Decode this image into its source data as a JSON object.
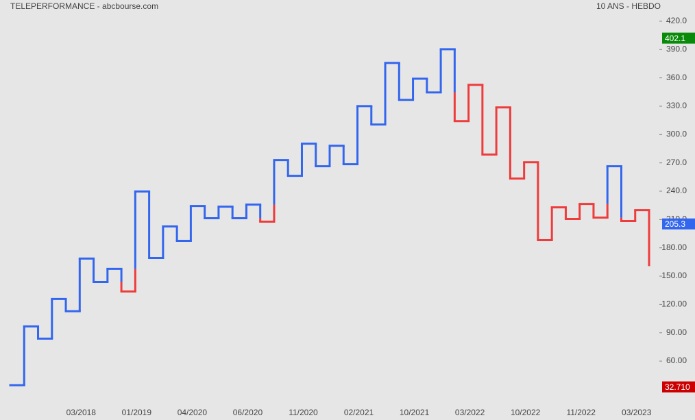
{
  "chart_data": {
    "type": "kagi",
    "title": "TELEPERFORMANCE - abcbourse.com",
    "subtitle": "10 ANS - HEBDO",
    "values": [
      34.5,
      96.8,
      83.8,
      125.8,
      112.8,
      168.6,
      143.9,
      157.7,
      133.8,
      239.6,
      169.3,
      202.6,
      187.4,
      224.3,
      211.3,
      223.6,
      211.3,
      225.8,
      207.7,
      272.9,
      256.2,
      290.3,
      266.4,
      288.1,
      268.6,
      330.1,
      310.6,
      375.8,
      336.7,
      359.1,
      344.6,
      390.3,
      314.2,
      352.6,
      278.7,
      328.7,
      253.3,
      270.7,
      188.1,
      222.9,
      210.6,
      226.5,
      212,
      266.4,
      208.4,
      220,
      160.6
    ],
    "colors": [
      "#3366ee",
      "#3366ee",
      "#3366ee",
      "#3366ee",
      "#3366ee",
      "#3366ee",
      "#3366ee",
      "#3366ee",
      "#ee3b3b",
      "#3366ee",
      "#3366ee",
      "#3366ee",
      "#3366ee",
      "#3366ee",
      "#3366ee",
      "#3366ee",
      "#3366ee",
      "#3366ee",
      "#ee3b3b",
      "#3366ee",
      "#3366ee",
      "#3366ee",
      "#3366ee",
      "#3366ee",
      "#3366ee",
      "#3366ee",
      "#3366ee",
      "#3366ee",
      "#3366ee",
      "#3366ee",
      "#3366ee",
      "#3366ee",
      "#ee3b3b",
      "#ee3b3b",
      "#ee3b3b",
      "#ee3b3b",
      "#ee3b3b",
      "#ee3b3b",
      "#ee3b3b",
      "#ee3b3b",
      "#ee3b3b",
      "#ee3b3b",
      "#ee3b3b",
      "#3366ee",
      "#ee3b3b",
      "#ee3b3b",
      "#ee3b3b"
    ],
    "x_labels": [
      "03/2018",
      "01/2019",
      "04/2020",
      "06/2020",
      "11/2020",
      "02/2021",
      "10/2021",
      "03/2022",
      "10/2022",
      "11/2022",
      "03/2023"
    ],
    "ylim": [
      30,
      440
    ],
    "yticks": [
      {
        "value": 420,
        "label": "420.0"
      },
      {
        "value": 390,
        "label": "390.0"
      },
      {
        "value": 360,
        "label": "360.0"
      },
      {
        "value": 330,
        "label": "330.0"
      },
      {
        "value": 300,
        "label": "300.0"
      },
      {
        "value": 270,
        "label": "270.0"
      },
      {
        "value": 240,
        "label": "240.0"
      },
      {
        "value": 210,
        "label": "210.0"
      },
      {
        "value": 180,
        "label": "180.00"
      },
      {
        "value": 150,
        "label": "150.00"
      },
      {
        "value": 120,
        "label": "120.00"
      },
      {
        "value": 90,
        "label": "90.00"
      },
      {
        "value": 60,
        "label": "60.00"
      }
    ],
    "price_labels": [
      {
        "value": 402.1,
        "label": "402.1",
        "color": "#0a8a0a"
      },
      {
        "value": 205.3,
        "label": "205.3",
        "color": "#3366ee"
      },
      {
        "value": 32.71,
        "label": "32.710",
        "color": "#cc0000"
      }
    ]
  }
}
